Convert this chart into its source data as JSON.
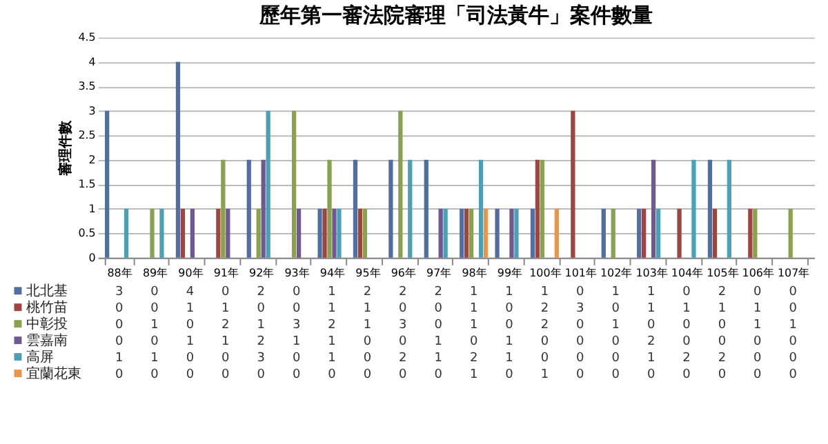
{
  "chart_data": {
    "type": "bar",
    "title": "歷年第一審法院審理「司法黃牛」案件數量",
    "ylabel": "審理件數",
    "categories": [
      "88年",
      "89年",
      "90年",
      "91年",
      "92年",
      "93年",
      "94年",
      "95年",
      "96年",
      "97年",
      "98年",
      "99年",
      "100年",
      "101年",
      "102年",
      "103年",
      "104年",
      "105年",
      "106年",
      "107年"
    ],
    "series": [
      {
        "name": "北北基",
        "color": "#4f6fa0",
        "values": [
          3,
          0,
          4,
          0,
          2,
          0,
          1,
          2,
          2,
          2,
          1,
          1,
          1,
          0,
          1,
          1,
          0,
          2,
          0,
          0
        ]
      },
      {
        "name": "桃竹苗",
        "color": "#a0443f",
        "values": [
          0,
          0,
          1,
          1,
          0,
          0,
          1,
          1,
          0,
          0,
          1,
          0,
          2,
          3,
          0,
          1,
          1,
          1,
          1,
          0
        ]
      },
      {
        "name": "中彰投",
        "color": "#8aa150",
        "values": [
          0,
          1,
          0,
          2,
          1,
          3,
          2,
          1,
          3,
          0,
          1,
          0,
          2,
          0,
          1,
          0,
          0,
          0,
          1,
          1
        ]
      },
      {
        "name": "雲嘉南",
        "color": "#6e5a8e",
        "values": [
          0,
          0,
          1,
          1,
          2,
          1,
          1,
          0,
          0,
          1,
          0,
          1,
          0,
          0,
          0,
          2,
          0,
          0,
          0,
          0
        ]
      },
      {
        "name": "高屏",
        "color": "#4aa0b5",
        "values": [
          1,
          1,
          0,
          0,
          3,
          0,
          1,
          0,
          2,
          1,
          2,
          1,
          0,
          0,
          0,
          1,
          2,
          2,
          0,
          0
        ]
      },
      {
        "name": "宜蘭花東",
        "color": "#e8964a",
        "values": [
          0,
          0,
          0,
          0,
          0,
          0,
          0,
          0,
          0,
          0,
          1,
          0,
          1,
          0,
          0,
          0,
          0,
          0,
          0,
          0
        ]
      }
    ],
    "ylim": [
      0,
      4.5
    ],
    "yticks": [
      0,
      0.5,
      1,
      1.5,
      2,
      2.5,
      3,
      3.5,
      4,
      4.5
    ],
    "grid": "y",
    "legend": "bottom",
    "data_labels": true
  }
}
